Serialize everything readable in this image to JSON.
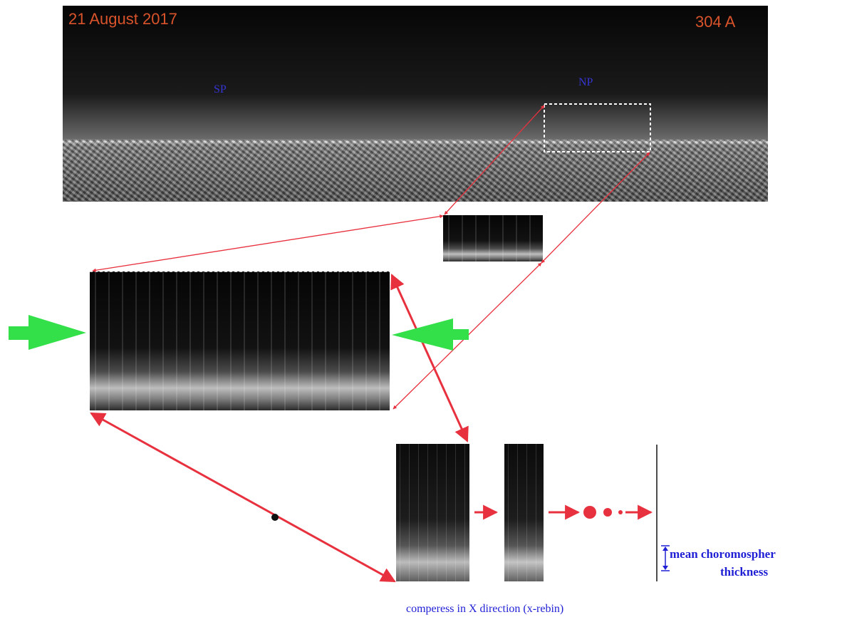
{
  "top_image": {
    "date_label": "21 August 2017",
    "wavelength_label": "304 A",
    "south_pole_label": "SP",
    "north_pole_label": "NP"
  },
  "annotation": {
    "line1": "mean chorοmospher",
    "line2": "thickness"
  },
  "caption": "comperess in X direction (x-rebin)",
  "colors": {
    "arrow_red": "#e8313e",
    "arrow_green": "#33e04a",
    "label_orange": "#d9532b",
    "label_blue": "#1f1fd6"
  }
}
